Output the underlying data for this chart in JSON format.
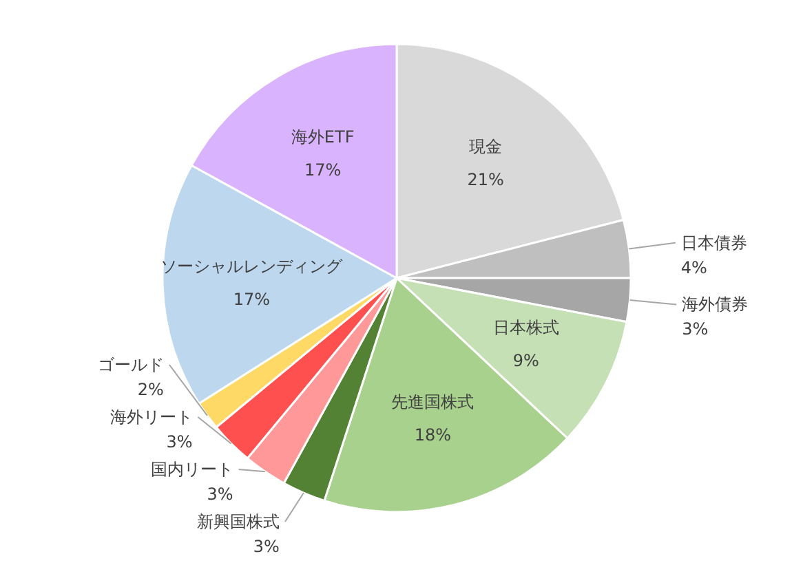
{
  "chart_data": {
    "type": "pie",
    "categories": [
      "現金",
      "日本債券",
      "海外債券",
      "日本株式",
      "先進国株式",
      "新興国株式",
      "国内リート",
      "海外リート",
      "ゴールド",
      "ソーシャルレンディング",
      "海外ETF"
    ],
    "values": [
      21,
      4,
      3,
      9,
      18,
      3,
      3,
      3,
      2,
      17,
      17
    ],
    "colors": [
      "#d9d9d9",
      "#bfbfbf",
      "#a6a6a6",
      "#c5e0b4",
      "#a9d18e",
      "#548235",
      "#ff9999",
      "#ff5050",
      "#ffd966",
      "#bdd7ee",
      "#dab3ff"
    ],
    "value_labels": [
      "21%",
      "4%",
      "3%",
      "9%",
      "18%",
      "3%",
      "3%",
      "3%",
      "2%",
      "17%",
      "17%"
    ]
  }
}
